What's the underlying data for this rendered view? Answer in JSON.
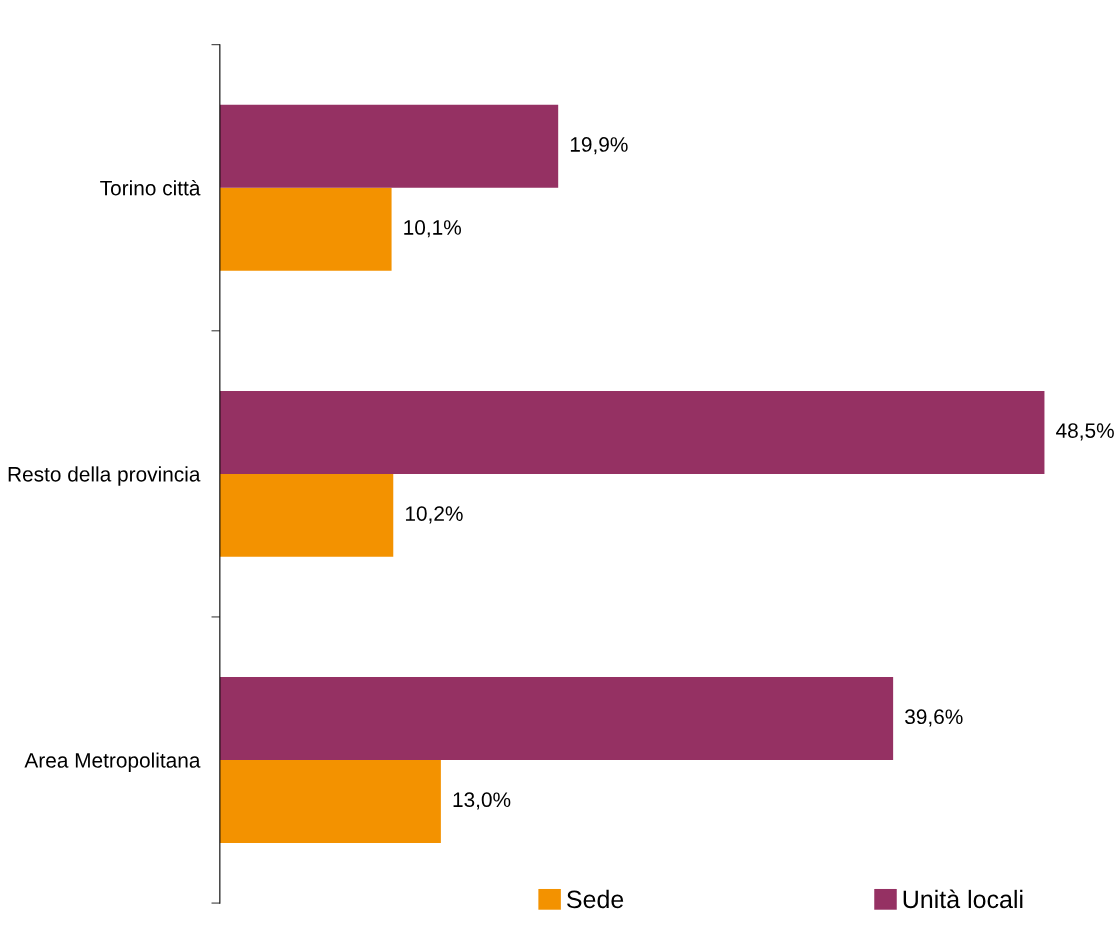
{
  "chart_data": {
    "type": "bar",
    "orientation": "horizontal",
    "categories": [
      "Torino città",
      "Resto della provincia",
      "Area Metropolitana"
    ],
    "series": [
      {
        "name": "Sede",
        "color": "#f39200",
        "values": [
          10.1,
          10.2,
          13.0
        ],
        "value_labels": [
          "10,1%",
          "10,2%",
          "13,0%"
        ]
      },
      {
        "name": "Unità locali",
        "color": "#953163",
        "values": [
          19.9,
          48.5,
          39.6
        ],
        "value_labels": [
          "19,9%",
          "48,5%",
          "39,6%"
        ]
      }
    ],
    "legend": "bottom",
    "grid": false
  }
}
